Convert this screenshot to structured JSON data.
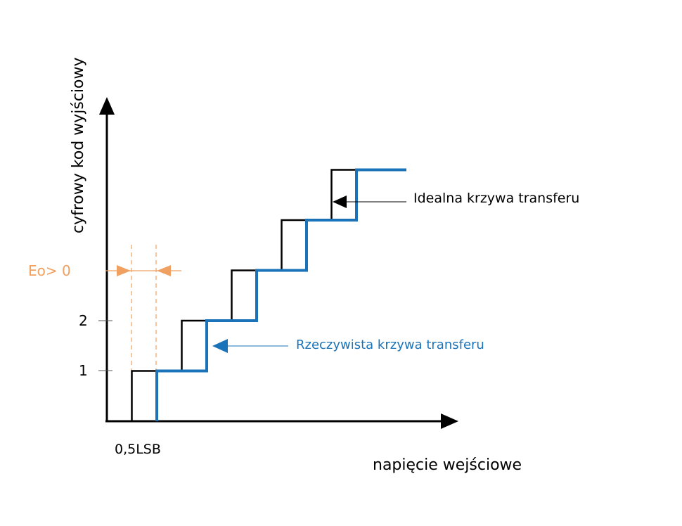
{
  "y_axis_label": "cyfrowy kod wyjściowy",
  "x_axis_label": "napięcie wejściowe",
  "y_ticks": [
    "1",
    "2"
  ],
  "x_tick": "0,5LSB",
  "offset_label": "Eo> 0",
  "ideal_label": "Idealna krzywa transferu",
  "real_label": "Rzeczywista krzywa transferu",
  "colors": {
    "axis": "#000000",
    "ideal": "#000000",
    "real": "#1a73b8",
    "offset": "#f0a060"
  },
  "chart_data": {
    "type": "line",
    "xlabel": "napięcie wejściowe",
    "ylabel": "cyfrowy kod wyjściowy",
    "series": [
      {
        "x": [
          1,
          1,
          3,
          3,
          5,
          5,
          7,
          7,
          9,
          9,
          11
        ],
        "y": [
          0,
          1,
          1,
          2,
          2,
          3,
          3,
          4,
          4,
          5,
          5
        ]
      },
      {
        "x": [
          2,
          2,
          4,
          4,
          6,
          6,
          8,
          8,
          10,
          10,
          12
        ],
        "y": [
          0,
          1,
          1,
          2,
          2,
          3,
          3,
          4,
          4,
          5,
          5
        ]
      }
    ]
  }
}
